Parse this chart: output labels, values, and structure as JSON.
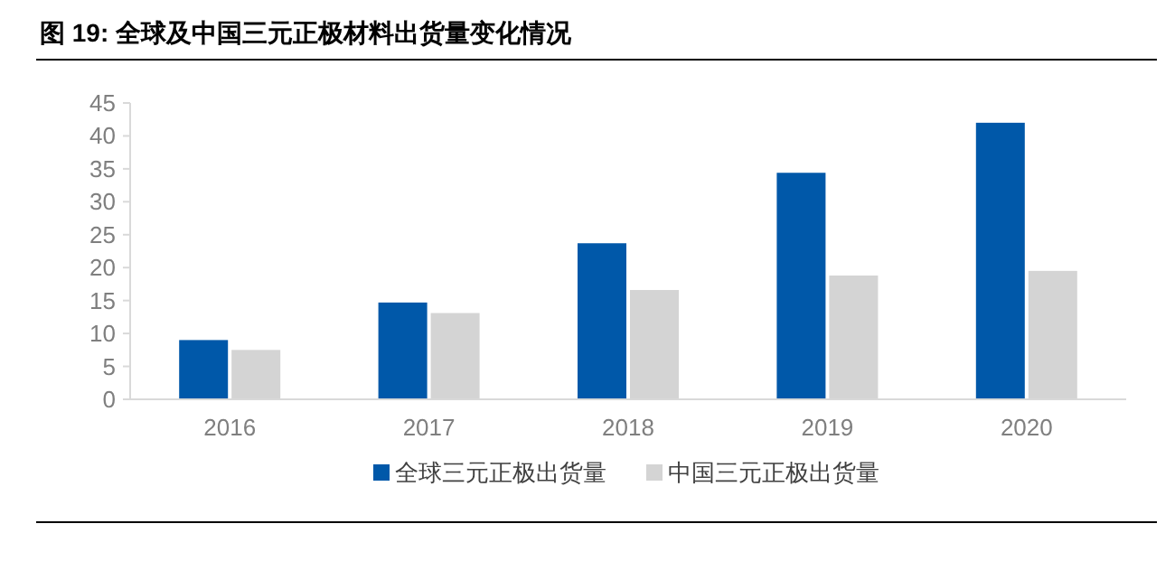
{
  "chart_data": {
    "type": "bar",
    "title": "图 19: 全球及中国三元正极材料出货量变化情况",
    "categories": [
      "2016",
      "2017",
      "2018",
      "2019",
      "2020"
    ],
    "series": [
      {
        "name": "全球三元正极出货量",
        "color": "#0058a9",
        "values": [
          9.0,
          14.7,
          23.7,
          34.4,
          42.0
        ]
      },
      {
        "name": "中国三元正极出货量",
        "color": "#d4d4d4",
        "values": [
          7.5,
          13.1,
          16.6,
          18.8,
          19.5
        ]
      }
    ],
    "ylim": [
      0,
      45
    ],
    "yticks": [
      0,
      5,
      10,
      15,
      20,
      25,
      30,
      35,
      40,
      45
    ],
    "grid": false,
    "legend": "bottom"
  }
}
